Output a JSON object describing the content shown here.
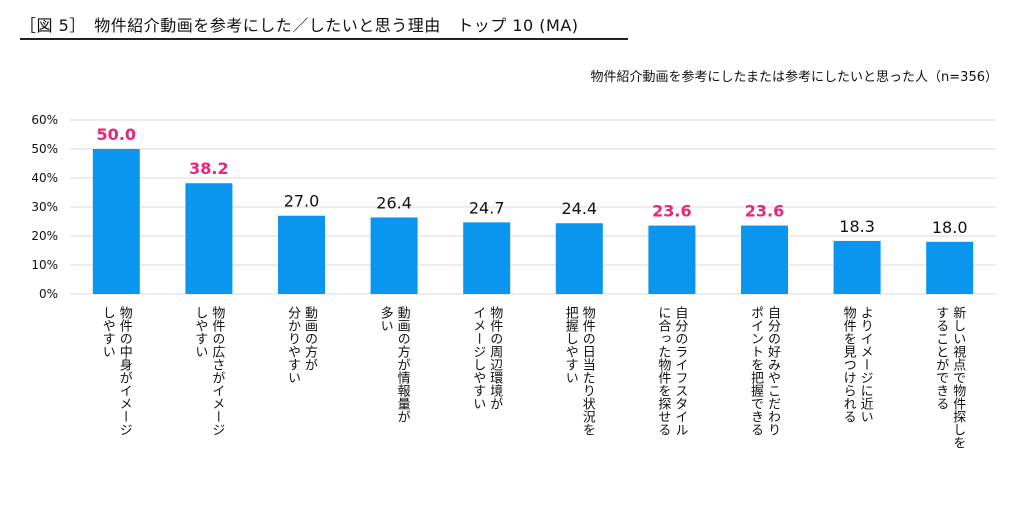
{
  "header": {
    "figure_title": "［図 5］　物件紹介動画を参考にした／したいと思う理由　トップ 10 (MA)",
    "subtitle": "物件紹介動画を参考にしたまたは参考にしたいと思った人（n=356）"
  },
  "colors": {
    "bar": "#0a96ee",
    "highlight_label": "#e8267a",
    "normal_label": "#111111",
    "grid": "#d9d9d9"
  },
  "chart_data": {
    "type": "bar",
    "ylim": [
      0,
      60
    ],
    "yticks": [
      "0%",
      "10%",
      "20%",
      "30%",
      "40%",
      "50%",
      "60%"
    ],
    "grid": true,
    "categories": [
      [
        "物件の中身がイメージ",
        "しやすい"
      ],
      [
        "物件の広さがイメージ",
        "しやすい"
      ],
      [
        "動画の方が",
        "分かりやすい"
      ],
      [
        "動画の方が情報量が",
        "多い"
      ],
      [
        "物件の周辺環境が",
        "イメージしやすい"
      ],
      [
        "物件の日当たり状況を",
        "把握しやすい"
      ],
      [
        "自分のライフスタイル",
        "に合った物件を探せる"
      ],
      [
        "自分の好みやこだわり",
        "ポイントを把握できる"
      ],
      [
        "よりイメージに近い",
        "物件を見つけられる"
      ],
      [
        "新しい視点で物件探しを",
        "することができる"
      ]
    ],
    "values": [
      50.0,
      38.2,
      27.0,
      26.4,
      24.7,
      24.4,
      23.6,
      23.6,
      18.3,
      18.0
    ],
    "value_labels": [
      "50.0",
      "38.2",
      "27.0",
      "26.4",
      "24.7",
      "24.4",
      "23.6",
      "23.6",
      "18.3",
      "18.0"
    ],
    "highlighted": [
      true,
      true,
      false,
      false,
      false,
      false,
      true,
      true,
      false,
      false
    ]
  }
}
